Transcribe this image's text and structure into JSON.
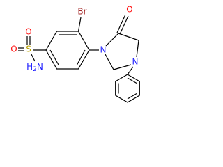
{
  "atoms": {
    "bromine": "Br",
    "carbonyl_oxygen": "O",
    "sulfonyl_oxygen_top": "O",
    "sulfonyl_oxygen_left": "O",
    "sulfur": "S",
    "amine": {
      "h": "H",
      "sub": "2",
      "n": "N"
    },
    "ring_nitrogen_1": "N",
    "ring_nitrogen_3": "N"
  }
}
